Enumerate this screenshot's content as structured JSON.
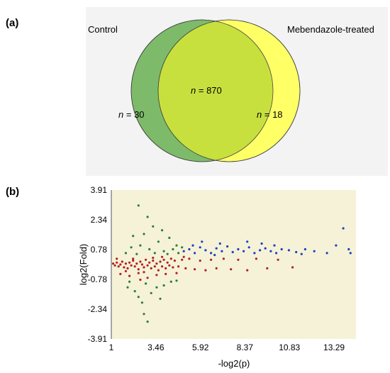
{
  "panels": {
    "a": "(a)",
    "b": "(b)"
  },
  "venn": {
    "left_set": {
      "label": "Control",
      "count_text": "= 30",
      "color": "#7dbb6a"
    },
    "right_set": {
      "label": "Mebendazole-treated",
      "count_text": "= 18",
      "color": "#ffff66"
    },
    "intersection": {
      "count_text": "= 870",
      "color": "#c7e03e"
    },
    "n_symbol": "n"
  },
  "chart_data": [
    {
      "type": "venn",
      "sets": [
        {
          "name": "Control",
          "only": 30
        },
        {
          "name": "Mebendazole-treated",
          "only": 18
        }
      ],
      "intersection": 870
    },
    {
      "type": "scatter",
      "xlabel": "-log2(p)",
      "ylabel": "log2(Fold)",
      "x_ticks": [
        "1",
        "3.46",
        "5.92",
        "8.37",
        "10.83",
        "13.29"
      ],
      "x_tick_values": [
        1,
        3.46,
        5.92,
        8.37,
        10.83,
        13.29
      ],
      "y_ticks": [
        "3.91",
        "2.34",
        "0.78",
        "-0.78",
        "-2.34",
        "-3.91"
      ],
      "y_tick_values": [
        3.91,
        2.34,
        0.78,
        -0.78,
        -2.34,
        -3.91
      ],
      "xlim": [
        1,
        14.5
      ],
      "ylim": [
        -3.91,
        3.91
      ],
      "background": "#f5f2d8",
      "grid": false,
      "series": [
        {
          "color": "#b22222",
          "points": [
            [
              1.1,
              0.05
            ],
            [
              1.2,
              -0.05
            ],
            [
              1.3,
              0.1
            ],
            [
              1.4,
              -0.1
            ],
            [
              1.5,
              0.0
            ],
            [
              1.6,
              0.15
            ],
            [
              1.7,
              -0.15
            ],
            [
              1.8,
              0.05
            ],
            [
              1.9,
              -0.2
            ],
            [
              2.0,
              0.1
            ],
            [
              2.1,
              -0.05
            ],
            [
              2.2,
              0.2
            ],
            [
              2.3,
              -0.1
            ],
            [
              2.4,
              0.05
            ],
            [
              2.5,
              -0.25
            ],
            [
              2.6,
              0.15
            ],
            [
              2.7,
              0.0
            ],
            [
              2.8,
              -0.15
            ],
            [
              2.9,
              0.25
            ],
            [
              3.0,
              -0.05
            ],
            [
              3.1,
              0.1
            ],
            [
              3.2,
              -0.2
            ],
            [
              3.3,
              0.2
            ],
            [
              3.4,
              -0.1
            ],
            [
              3.5,
              0.05
            ],
            [
              3.6,
              -0.3
            ],
            [
              3.7,
              0.15
            ],
            [
              3.8,
              -0.1
            ],
            [
              3.9,
              0.25
            ],
            [
              4.0,
              -0.2
            ],
            [
              4.1,
              0.1
            ],
            [
              4.2,
              -0.05
            ],
            [
              4.3,
              0.3
            ],
            [
              4.4,
              -0.15
            ],
            [
              4.5,
              0.2
            ],
            [
              4.7,
              -0.1
            ],
            [
              4.9,
              0.25
            ],
            [
              5.1,
              -0.2
            ],
            [
              5.3,
              0.3
            ],
            [
              5.6,
              -0.25
            ],
            [
              5.9,
              0.2
            ],
            [
              6.2,
              -0.3
            ],
            [
              6.5,
              0.25
            ],
            [
              6.8,
              -0.2
            ],
            [
              7.2,
              0.3
            ],
            [
              7.6,
              -0.25
            ],
            [
              8.0,
              0.25
            ],
            [
              8.5,
              -0.3
            ],
            [
              9.0,
              0.3
            ],
            [
              9.6,
              -0.2
            ],
            [
              10.2,
              0.25
            ],
            [
              11.0,
              -0.15
            ],
            [
              1.5,
              -0.5
            ],
            [
              2.0,
              -0.6
            ],
            [
              2.5,
              -0.45
            ],
            [
              3.0,
              -0.7
            ],
            [
              3.5,
              -0.55
            ],
            [
              4.0,
              -0.5
            ],
            [
              1.8,
              -0.35
            ],
            [
              2.8,
              -0.4
            ],
            [
              3.3,
              0.35
            ],
            [
              2.2,
              0.3
            ],
            [
              1.3,
              0.3
            ],
            [
              4.6,
              -0.45
            ],
            [
              5.0,
              0.4
            ],
            [
              2.6,
              -0.8
            ],
            [
              3.8,
              0.4
            ]
          ]
        },
        {
          "color": "#2e7d32",
          "points": [
            [
              2.5,
              3.1
            ],
            [
              3.0,
              2.5
            ],
            [
              3.3,
              2.0
            ],
            [
              2.8,
              1.6
            ],
            [
              3.8,
              1.8
            ],
            [
              4.2,
              1.4
            ],
            [
              2.2,
              1.5
            ],
            [
              3.6,
              1.2
            ],
            [
              4.6,
              1.0
            ],
            [
              4.9,
              0.9
            ],
            [
              2.1,
              0.9
            ],
            [
              2.6,
              1.0
            ],
            [
              3.1,
              0.8
            ],
            [
              3.9,
              0.7
            ],
            [
              4.4,
              0.8
            ],
            [
              1.8,
              0.6
            ],
            [
              2.4,
              0.55
            ],
            [
              3.4,
              0.6
            ],
            [
              4.1,
              0.55
            ],
            [
              4.7,
              0.6
            ],
            [
              2.9,
              -1.0
            ],
            [
              3.2,
              -1.5
            ],
            [
              2.7,
              -2.0
            ],
            [
              3.5,
              -1.2
            ],
            [
              2.3,
              -1.4
            ],
            [
              3.9,
              -1.1
            ],
            [
              2.8,
              -2.6
            ],
            [
              3.7,
              -1.8
            ],
            [
              4.3,
              -0.9
            ],
            [
              2.0,
              -0.9
            ],
            [
              3.0,
              -3.0
            ],
            [
              2.5,
              -1.7
            ],
            [
              4.6,
              -0.85
            ],
            [
              1.9,
              -1.2
            ]
          ]
        },
        {
          "color": "#1f3fbf",
          "points": [
            [
              5.0,
              0.7
            ],
            [
              5.3,
              0.8
            ],
            [
              5.6,
              0.6
            ],
            [
              5.9,
              0.9
            ],
            [
              6.2,
              0.75
            ],
            [
              6.5,
              0.6
            ],
            [
              6.8,
              0.85
            ],
            [
              7.1,
              0.7
            ],
            [
              7.4,
              0.95
            ],
            [
              7.7,
              0.65
            ],
            [
              8.0,
              0.8
            ],
            [
              8.3,
              0.7
            ],
            [
              8.6,
              0.9
            ],
            [
              8.9,
              0.6
            ],
            [
              9.2,
              0.75
            ],
            [
              9.5,
              0.85
            ],
            [
              9.8,
              0.7
            ],
            [
              10.1,
              0.6
            ],
            [
              10.4,
              0.8
            ],
            [
              10.8,
              0.75
            ],
            [
              11.2,
              0.65
            ],
            [
              11.7,
              0.8
            ],
            [
              12.2,
              0.7
            ],
            [
              12.9,
              0.6
            ],
            [
              13.4,
              1.0
            ],
            [
              13.8,
              1.9
            ],
            [
              14.1,
              0.8
            ],
            [
              14.2,
              0.6
            ],
            [
              6.0,
              1.2
            ],
            [
              7.0,
              1.1
            ],
            [
              8.5,
              1.2
            ],
            [
              9.3,
              1.1
            ],
            [
              5.5,
              1.0
            ],
            [
              6.7,
              0.5
            ],
            [
              10.0,
              1.0
            ],
            [
              11.5,
              0.55
            ]
          ]
        }
      ]
    }
  ]
}
